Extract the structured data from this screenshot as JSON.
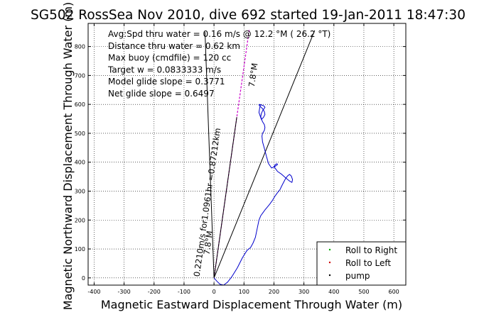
{
  "chart_data": {
    "type": "line",
    "title": "SG502 RossSea Nov 2010, dive 692 started 19-Jan-2011 18:47:30",
    "xlabel": "Magnetic Eastward Displacement Through Water (m)",
    "ylabel": "Magnetic Northward Displacement Through Water (m)",
    "xlim": [
      -420,
      640
    ],
    "ylim": [
      -25,
      880
    ],
    "x_ticks": [
      -400,
      -300,
      -200,
      -100,
      0,
      100,
      200,
      300,
      400,
      500,
      600
    ],
    "y_ticks": [
      0,
      100,
      200,
      300,
      400,
      500,
      600,
      700,
      800
    ],
    "grid": true,
    "annotations": [
      "Avg:Spd thru water =  0.16 m/s @  12.2   °M ( 26.2 °T)",
      "Distance thru water =  0.62 km",
      "Max buoy (cmdfile) = 120 cc",
      "Target w = 0.0833333 m/s",
      "Model glide slope = 0.3771",
      "Net glide slope = 0.6497"
    ],
    "line_labels": [
      {
        "text": "0.2210m/s for1.0961hr =0.87212km",
        "line": "current"
      },
      {
        "text": "7.8°M",
        "line": "current"
      },
      {
        "text": "7.8°M",
        "line": "current"
      }
    ],
    "series": [
      {
        "name": "",
        "color": "#0000cc",
        "x": [
          0,
          10,
          20,
          32,
          45,
          60,
          78,
          95,
          110,
          122,
          130,
          138,
          142,
          146,
          150,
          156,
          163,
          170,
          178,
          186,
          195,
          203,
          212,
          220,
          226,
          232,
          238,
          245,
          252,
          258,
          262,
          260,
          252,
          240,
          226,
          212,
          205,
          200,
          205,
          210,
          212,
          203,
          192,
          182,
          175,
          168,
          162,
          160,
          162,
          165,
          168,
          170,
          168,
          162,
          158,
          156,
          158,
          162,
          167,
          170,
          166,
          158,
          152,
          150,
          155,
          162,
          168,
          170,
          165,
          158,
          154,
          150,
          152,
          155
        ],
        "y": [
          0,
          -12,
          -22,
          -25,
          -15,
          5,
          35,
          70,
          95,
          105,
          120,
          140,
          160,
          180,
          200,
          215,
          225,
          235,
          245,
          255,
          268,
          282,
          295,
          305,
          318,
          330,
          342,
          352,
          358,
          352,
          340,
          330,
          335,
          345,
          358,
          368,
          378,
          385,
          392,
          395,
          392,
          385,
          380,
          395,
          420,
          448,
          470,
          490,
          500,
          505,
          510,
          520,
          530,
          540,
          550,
          558,
          568,
          578,
          585,
          590,
          595,
          598,
          600,
          598,
          592,
          585,
          575,
          565,
          555,
          548,
          560,
          572,
          585,
          600
        ]
      },
      {
        "name": "Roll to Right",
        "color": "#00aa00",
        "x": [],
        "y": []
      },
      {
        "name": "Roll to Left",
        "color": "#cc0000",
        "x": [],
        "y": []
      },
      {
        "name": "pump",
        "color": "#000000",
        "x": [],
        "y": []
      }
    ],
    "reference_lines": [
      {
        "name": "current",
        "color": "#cc00cc",
        "x": [
          0,
          118
        ],
        "y": [
          0,
          862
        ]
      },
      {
        "name": "heading",
        "color": "#000000",
        "x": [
          0,
          336
        ],
        "y": [
          0,
          856
        ]
      },
      {
        "name": "bound-left",
        "color": "#000000",
        "x": [
          0,
          -30
        ],
        "y": [
          0,
          850
        ]
      },
      {
        "name": "bound-right",
        "color": "#000000",
        "x": [
          0,
          76
        ],
        "y": [
          0,
          556
        ]
      }
    ],
    "legend": {
      "position": "bottom-right",
      "entries": [
        "Roll to Right",
        "Roll to Left",
        "pump"
      ]
    }
  }
}
